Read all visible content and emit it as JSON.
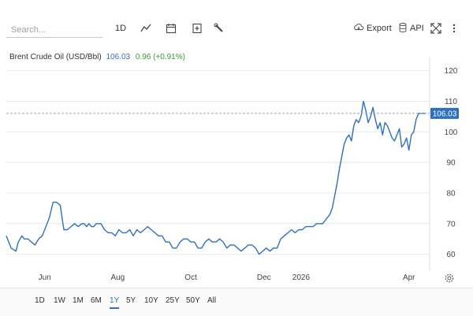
{
  "toolbar": {
    "search_placeholder": "Search...",
    "interval_label": "1D",
    "export_label": "Export",
    "api_label": "API",
    "icons": [
      "line-style-icon",
      "calendar-icon",
      "compare-icon",
      "tools-icon",
      "cloud-download-icon",
      "database-icon",
      "fullscreen-icon",
      "more-icon"
    ]
  },
  "legend": {
    "symbol": "Brent Crude Oil (USD/Bbl)",
    "price": "106.03",
    "change": "0.96 (+0.91%)"
  },
  "colors": {
    "line": "#2f6fbf",
    "price_tag": "#2f6fbf",
    "change_positive": "#3a9a3a",
    "grid": "#e8e8e8",
    "ref_line": "#8aa6c8"
  },
  "range_buttons": {
    "items": [
      "1D",
      "1W",
      "1M",
      "6M",
      "1Y",
      "5Y",
      "10Y",
      "25Y",
      "50Y",
      "All"
    ],
    "active": "1Y"
  },
  "chart_data": {
    "type": "line",
    "title": "",
    "xlabel": "",
    "ylabel": "",
    "y_ticks": [
      60,
      70,
      80,
      90,
      100,
      110,
      120
    ],
    "ylim": [
      55,
      123
    ],
    "x_tick_labels": [
      "Jun",
      "Aug",
      "Oct",
      "Dec",
      "2026",
      "Apr"
    ],
    "x_tick_days": [
      32,
      93,
      154,
      215,
      246,
      336
    ],
    "last_price_label": "106.03",
    "grid": "horizontal",
    "series": [
      {
        "x": [
          0,
          4,
          8,
          10,
          13,
          15,
          18,
          21,
          24,
          27,
          30,
          33,
          36,
          39,
          42,
          45,
          48,
          51,
          54,
          57,
          60,
          63,
          65,
          67,
          69,
          71,
          73,
          75,
          77,
          79,
          82,
          85,
          88,
          91,
          94,
          97,
          100,
          103,
          106,
          109,
          112,
          115,
          118,
          121,
          124,
          127,
          130,
          133,
          136,
          139,
          142,
          145,
          148,
          151,
          154,
          157,
          160,
          163,
          166,
          169,
          172,
          175,
          178,
          181,
          184,
          187,
          190,
          193,
          196,
          199,
          202,
          205,
          208,
          211,
          214,
          217,
          220,
          223,
          226,
          229,
          232,
          235,
          238,
          241,
          244,
          247,
          250,
          253,
          256,
          259,
          262,
          264,
          266,
          268,
          270,
          272,
          274,
          276,
          278,
          280,
          282,
          284,
          286,
          288,
          290,
          292,
          294,
          296,
          298,
          300,
          302,
          304,
          306,
          308,
          310,
          312,
          314,
          316,
          318,
          320,
          322,
          324,
          326,
          328,
          330,
          332,
          334,
          336,
          338,
          340,
          342,
          344,
          346,
          348,
          350
        ],
        "y": [
          66,
          62,
          61,
          64,
          66,
          65,
          65,
          64,
          63,
          65,
          66,
          69,
          72,
          77,
          77,
          76,
          68,
          68,
          69,
          70,
          69,
          70,
          70,
          69,
          70,
          69,
          69,
          70,
          70,
          70,
          68,
          67,
          67,
          66,
          68,
          67,
          67,
          68,
          66,
          68,
          67,
          68,
          69,
          68,
          67,
          66,
          66,
          64,
          64,
          62,
          62,
          64,
          65,
          65,
          64,
          64,
          62,
          62,
          64,
          65,
          64,
          64,
          65,
          64,
          62,
          63,
          63,
          62,
          61,
          62,
          63,
          63,
          62,
          60,
          61,
          62,
          61,
          62,
          62,
          65,
          66,
          67,
          68,
          67,
          68,
          68,
          69,
          69,
          69,
          70,
          70,
          70,
          71,
          72,
          73,
          75,
          79,
          83,
          88,
          92,
          96,
          98,
          99,
          97,
          102,
          104,
          103,
          105,
          110,
          107,
          103,
          105,
          108,
          104,
          101,
          103,
          99,
          103,
          102,
          100,
          98,
          97,
          99,
          101,
          95,
          96,
          98,
          94,
          99,
          100,
          104,
          106,
          106.03,
          106.03,
          106.03
        ]
      }
    ]
  }
}
